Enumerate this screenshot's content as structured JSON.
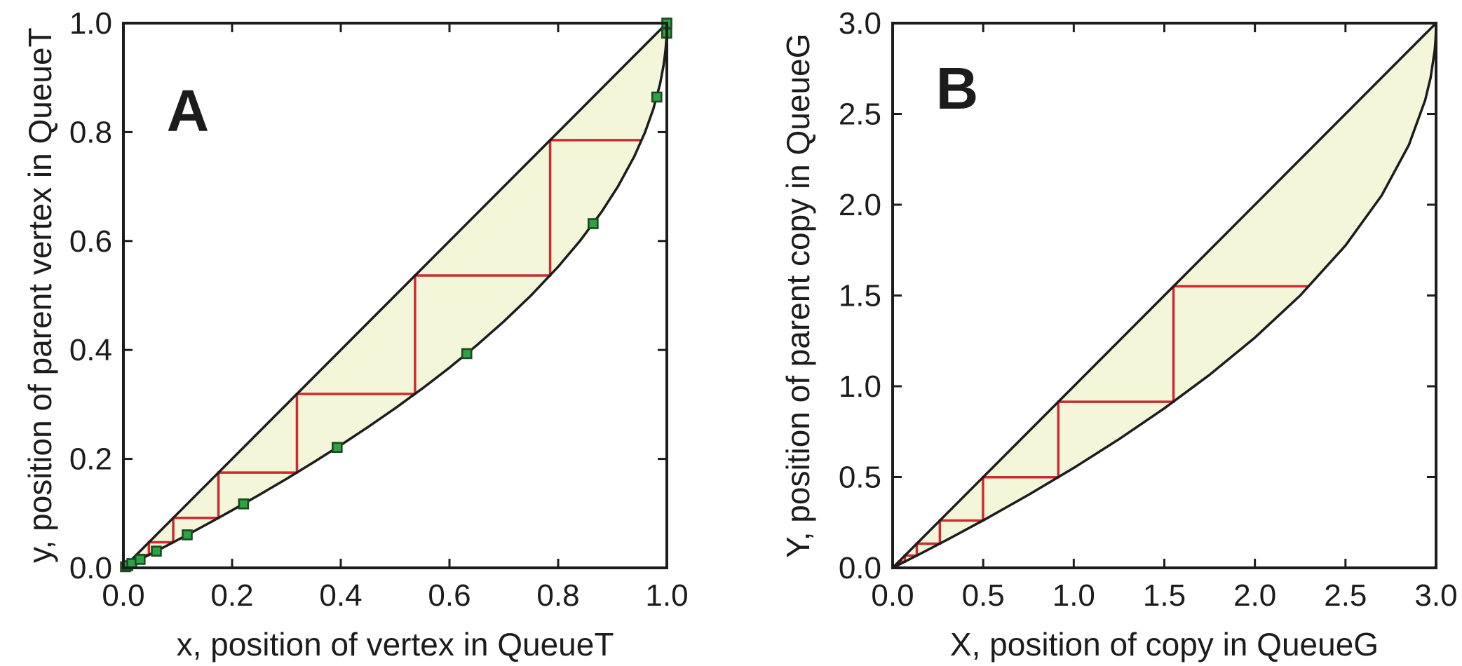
{
  "colors": {
    "background": "#ffffff",
    "axis_and_curve": "#1c1c1c",
    "staircase": "#cd2b2f",
    "region_fill": "#f4f6da",
    "marker_fill": "#2ca444",
    "marker_border": "#1a4a20",
    "text": "#1c1c1c"
  },
  "chart_data": [
    {
      "panel_label": "A",
      "type": "line",
      "xlabel": "x, position of vertex in QueueT",
      "ylabel": "y, position of parent vertex in QueueT",
      "xlim": [
        0,
        1
      ],
      "ylim": [
        0,
        1
      ],
      "grid": false,
      "legend": "none",
      "xticks": {
        "values": [
          0,
          0.2,
          0.4,
          0.6,
          0.8,
          1.0
        ],
        "labels": [
          "0.0",
          "0.2",
          "0.4",
          "0.6",
          "0.8",
          "1.0"
        ]
      },
      "yticks": {
        "values": [
          0,
          0.2,
          0.4,
          0.6,
          0.8,
          1.0
        ],
        "labels": [
          "0.0",
          "0.2",
          "0.4",
          "0.6",
          "0.8",
          "1.0"
        ]
      },
      "shaded_region": "area between identity line and parent-position curve",
      "series": [
        {
          "name": "identity line y = x",
          "type": "line",
          "color": "black",
          "points": [
            [
              0,
              0
            ],
            [
              1,
              1
            ]
          ]
        },
        {
          "name": "parent position curve y = 1 - sqrt(1 - x)",
          "type": "line",
          "color": "black",
          "points": [
            [
              0,
              0
            ],
            [
              0.04,
              0.0202
            ],
            [
              0.08,
              0.0408
            ],
            [
              0.12,
              0.0619
            ],
            [
              0.16,
              0.0835
            ],
            [
              0.2,
              0.1056
            ],
            [
              0.25,
              0.134
            ],
            [
              0.3,
              0.1633
            ],
            [
              0.35,
              0.1938
            ],
            [
              0.4,
              0.2254
            ],
            [
              0.45,
              0.2584
            ],
            [
              0.5,
              0.2929
            ],
            [
              0.55,
              0.3292
            ],
            [
              0.6,
              0.3675
            ],
            [
              0.65,
              0.4084
            ],
            [
              0.7,
              0.4523
            ],
            [
              0.75,
              0.5
            ],
            [
              0.8,
              0.5528
            ],
            [
              0.84,
              0.6
            ],
            [
              0.88,
              0.6536
            ],
            [
              0.91,
              0.7
            ],
            [
              0.94,
              0.7551
            ],
            [
              0.96,
              0.8
            ],
            [
              0.975,
              0.8419
            ],
            [
              0.9875,
              0.8882
            ],
            [
              0.994,
              0.9225
            ],
            [
              0.9975,
              0.95
            ],
            [
              0.999,
              0.9684
            ],
            [
              0.9998,
              0.9859
            ],
            [
              1,
              1
            ]
          ]
        },
        {
          "name": "iteration staircase",
          "type": "line",
          "color": "red",
          "points": [
            [
              0.003,
              0.003
            ],
            [
              0.006,
              0.003
            ],
            [
              0.006,
              0.006
            ],
            [
              0.0119,
              0.006
            ],
            [
              0.0119,
              0.0119
            ],
            [
              0.0237,
              0.0119
            ],
            [
              0.0237,
              0.0237
            ],
            [
              0.0469,
              0.0237
            ],
            [
              0.0469,
              0.0469
            ],
            [
              0.0917,
              0.0469
            ],
            [
              0.0917,
              0.0917
            ],
            [
              0.1749,
              0.0917
            ],
            [
              0.1749,
              0.1749
            ],
            [
              0.3193,
              0.1749
            ],
            [
              0.3193,
              0.3193
            ],
            [
              0.5366,
              0.3193
            ],
            [
              0.5366,
              0.5366
            ],
            [
              0.7853,
              0.5366
            ],
            [
              0.7853,
              0.7853
            ],
            [
              0.9539,
              0.7853
            ]
          ]
        },
        {
          "name": "vertex-parent sample points",
          "type": "scatter",
          "marker": "square",
          "color": "green",
          "points": [
            [
              0.0039,
              0.002
            ],
            [
              0.0078,
              0.0039
            ],
            [
              0.0155,
              0.0078
            ],
            [
              0.0307,
              0.0155
            ],
            [
              0.0606,
              0.0307
            ],
            [
              0.1174,
              0.0606
            ],
            [
              0.2211,
              0.1174
            ],
            [
              0.3933,
              0.2211
            ],
            [
              0.6319,
              0.3933
            ],
            [
              0.8643,
              0.6319
            ],
            [
              0.9816,
              0.8643
            ],
            [
              0.9997,
              0.9816
            ],
            [
              1,
              1
            ]
          ]
        }
      ]
    },
    {
      "panel_label": "B",
      "type": "line",
      "xlabel": "X, position of copy in QueueG",
      "ylabel": "Y, position of parent copy in QueueG",
      "xlim": [
        0,
        3
      ],
      "ylim": [
        0,
        3
      ],
      "grid": false,
      "legend": "none",
      "xticks": {
        "values": [
          0,
          0.5,
          1.0,
          1.5,
          2.0,
          2.5,
          3.0
        ],
        "labels": [
          "0.0",
          "0.5",
          "1.0",
          "1.5",
          "2.0",
          "2.5",
          "3.0"
        ]
      },
      "yticks": {
        "values": [
          0,
          0.5,
          1.0,
          1.5,
          2.0,
          2.5,
          3.0
        ],
        "labels": [
          "0.0",
          "0.5",
          "1.0",
          "1.5",
          "2.0",
          "2.5",
          "3.0"
        ]
      },
      "shaded_region": "area between identity line and parent-position curve",
      "series": [
        {
          "name": "identity line Y = X",
          "type": "line",
          "color": "black",
          "points": [
            [
              0,
              0
            ],
            [
              3,
              3
            ]
          ]
        },
        {
          "name": "parent position curve Y = 3(1 - sqrt(1 - X/3))",
          "type": "line",
          "color": "black",
          "points": [
            [
              0,
              0
            ],
            [
              0.15,
              0.076
            ],
            [
              0.3,
              0.154
            ],
            [
              0.5,
              0.2614
            ],
            [
              0.75,
              0.4019
            ],
            [
              1,
              0.5505
            ],
            [
              1.25,
              0.7087
            ],
            [
              1.5,
              0.8787
            ],
            [
              1.75,
              1.0635
            ],
            [
              2,
              1.268
            ],
            [
              2.25,
              1.5
            ],
            [
              2.5,
              1.7753
            ],
            [
              2.7,
              2.0513
            ],
            [
              2.85,
              2.3292
            ],
            [
              2.94,
              2.5757
            ],
            [
              2.97,
              2.7
            ],
            [
              2.9925,
              2.85
            ],
            [
              2.997,
              2.9051
            ],
            [
              2.9994,
              2.9576
            ],
            [
              3,
              3
            ]
          ]
        },
        {
          "name": "iteration staircase",
          "type": "line",
          "color": "red",
          "points": [
            [
              0.017,
              0.017
            ],
            [
              0.0339,
              0.017
            ],
            [
              0.0339,
              0.0339
            ],
            [
              0.0674,
              0.0339
            ],
            [
              0.0674,
              0.0674
            ],
            [
              0.1333,
              0.0674
            ],
            [
              0.1333,
              0.1333
            ],
            [
              0.2607,
              0.1333
            ],
            [
              0.2607,
              0.2607
            ],
            [
              0.4988,
              0.2607
            ],
            [
              0.4988,
              0.4988
            ],
            [
              0.9147,
              0.4988
            ],
            [
              0.9147,
              0.9147
            ],
            [
              1.5505,
              0.9147
            ],
            [
              1.5505,
              1.5505
            ],
            [
              2.2996,
              1.5505
            ]
          ]
        }
      ]
    }
  ]
}
